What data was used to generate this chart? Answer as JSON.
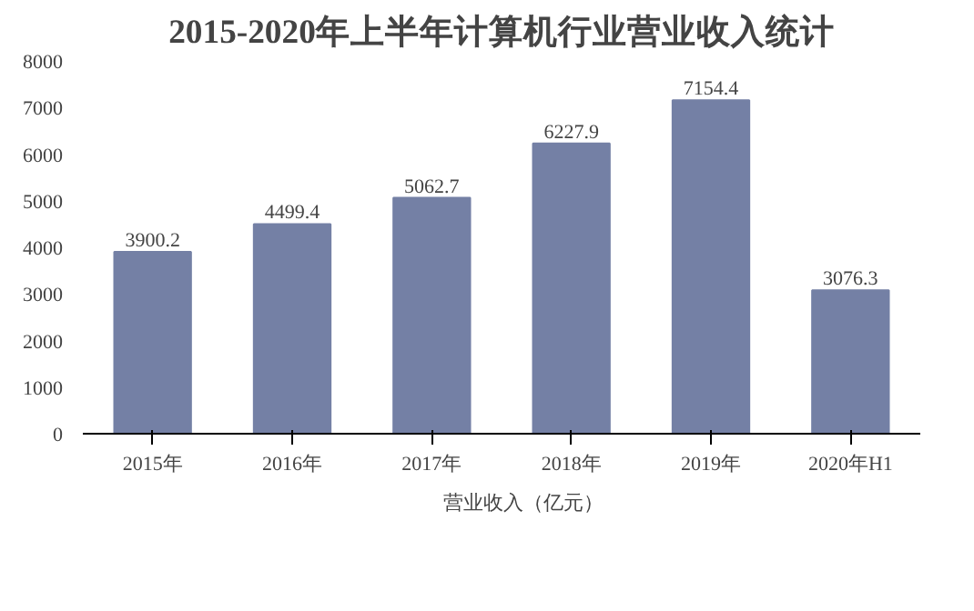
{
  "chart_data": {
    "type": "bar",
    "title": "2015-2020年上半年计算机行业营业收入统计",
    "categories": [
      "2015年",
      "2016年",
      "2017年",
      "2018年",
      "2019年",
      "2020年H1"
    ],
    "series": [
      {
        "name": "营业收入（亿元）",
        "color": "#7480a5",
        "values": [
          3900.2,
          4499.4,
          5062.7,
          6227.9,
          7154.4,
          3076.3
        ]
      }
    ],
    "ylim": [
      0,
      8000
    ],
    "yticks": [
      0,
      1000,
      2000,
      3000,
      4000,
      5000,
      6000,
      7000,
      8000
    ],
    "data_labels": true,
    "grid": false,
    "legend": "bottom"
  }
}
